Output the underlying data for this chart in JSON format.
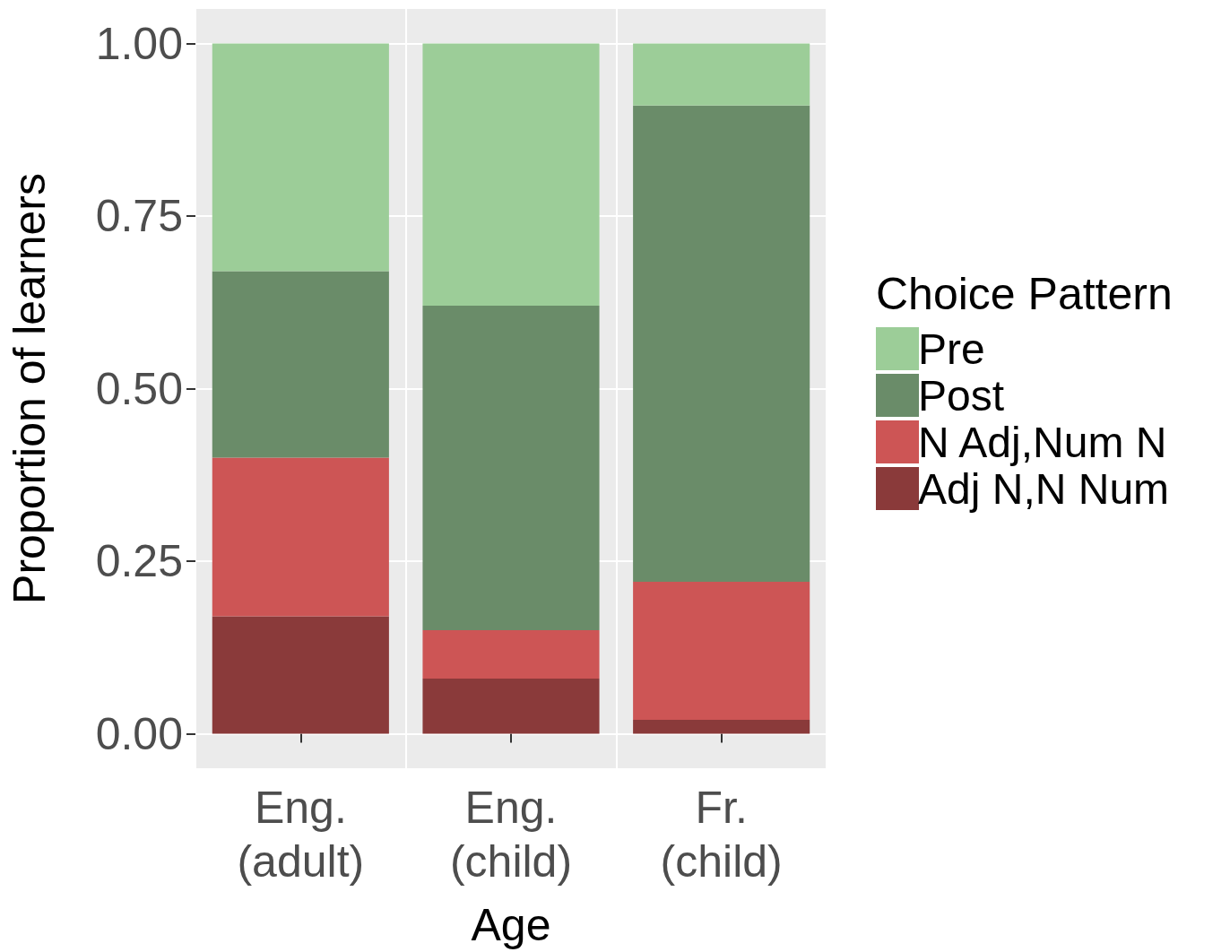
{
  "chart_data": {
    "type": "bar",
    "stacked": true,
    "xlabel": "Age",
    "ylabel": "Proportion of learners",
    "legend_title": "Choice Pattern",
    "categories": [
      "Eng. (adult)",
      "Eng. (child)",
      "Fr. (child)"
    ],
    "series": [
      {
        "name": "Adj N,N Num",
        "color": "#8a3a3a",
        "values": [
          0.17,
          0.08,
          0.02
        ]
      },
      {
        "name": "N Adj,Num N",
        "color": "#cd5555",
        "values": [
          0.23,
          0.07,
          0.2
        ]
      },
      {
        "name": "Post",
        "color": "#6a8c69",
        "values": [
          0.27,
          0.47,
          0.69
        ]
      },
      {
        "name": "Pre",
        "color": "#9ccd98",
        "values": [
          0.33,
          0.38,
          0.09
        ]
      }
    ],
    "ylim": [
      -0.05,
      1.05
    ],
    "yticks": [
      {
        "value": 0,
        "label": "0.00"
      },
      {
        "value": 0.25,
        "label": "0.25"
      },
      {
        "value": 0.5,
        "label": "0.50"
      },
      {
        "value": 0.75,
        "label": "0.75"
      },
      {
        "value": 1,
        "label": "1.00"
      }
    ],
    "grid": true,
    "legend": "right"
  }
}
